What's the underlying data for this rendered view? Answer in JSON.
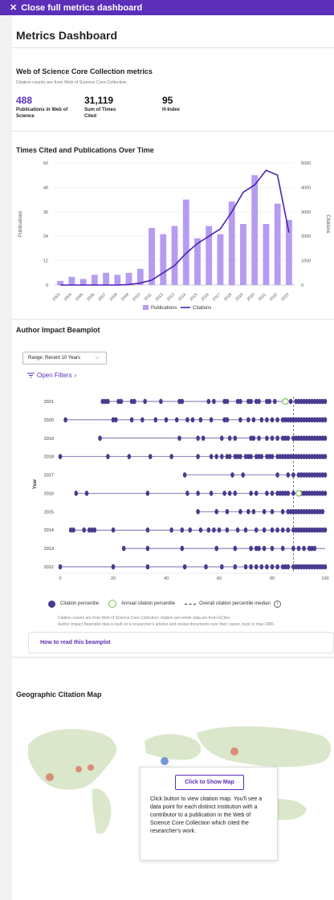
{
  "topbar": {
    "close_label": "Close full metrics dashboard"
  },
  "page_title": "Metrics Dashboard",
  "wos": {
    "title": "Web of Science Core Collection metrics",
    "subtitle": "Citation counts are from Web of Science Core Collection.",
    "metrics": [
      {
        "value": "488",
        "label": "Publications in Web of Science"
      },
      {
        "value": "31,119",
        "label": "Sum of Times Cited"
      },
      {
        "value": "95",
        "label": "H-Index"
      }
    ]
  },
  "chart_data": {
    "type": "bar",
    "title": "Times Cited and Publications Over Time",
    "categories": [
      "2003",
      "2004",
      "2005",
      "2006",
      "2007",
      "2008",
      "2009",
      "2010",
      "2011",
      "2012",
      "2013",
      "2014",
      "2015",
      "2016",
      "2017",
      "2018",
      "2019",
      "2020",
      "2021",
      "2022",
      "2023"
    ],
    "series": [
      {
        "name": "Publications",
        "type": "bar",
        "axis": "left",
        "color": "#b69cf0",
        "values": [
          2,
          4,
          3,
          5,
          6,
          5,
          6,
          8,
          28,
          25,
          29,
          42,
          23,
          29,
          25,
          41,
          30,
          54,
          30,
          40,
          32
        ]
      },
      {
        "name": "Citations",
        "type": "line",
        "axis": "right",
        "color": "#4b22b5",
        "values": [
          0,
          0,
          0,
          0,
          0,
          0,
          20,
          80,
          200,
          500,
          800,
          1300,
          1700,
          2000,
          2300,
          3000,
          3800,
          4100,
          4700,
          4500,
          2150
        ]
      }
    ],
    "ylabel": "Publications",
    "y2label": "Citations",
    "ylim": [
      0,
      60
    ],
    "y2lim": [
      0,
      5000
    ],
    "yticks": [
      "0",
      "12",
      "24",
      "36",
      "48",
      "60"
    ],
    "y2ticks": [
      "0",
      "1000",
      "2000",
      "3000",
      "4000",
      "5000"
    ],
    "legend": "bottom"
  },
  "beamplot": {
    "title": "Author Impact Beamplot",
    "range_label": "Range: Recent 10 Years",
    "filters_label": "Open Filters",
    "ylabel": "Year",
    "years": [
      "2021",
      "2020",
      "2019",
      "2018",
      "2017",
      "2016",
      "2015",
      "2014",
      "2013",
      "2012"
    ],
    "xticks": [
      "0",
      "20",
      "40",
      "60",
      "80",
      "100"
    ],
    "median": 88,
    "rows": [
      {
        "year": "2021",
        "start": 16,
        "annual": 85,
        "points": [
          16,
          17,
          18,
          22,
          23,
          27,
          28,
          32,
          38,
          45,
          46,
          56,
          58,
          62,
          63,
          67,
          68,
          71,
          72,
          74,
          75,
          78,
          79,
          81,
          85,
          87,
          89,
          90,
          91,
          92,
          93,
          94,
          95,
          96,
          97,
          98,
          99,
          100
        ]
      },
      {
        "year": "2020",
        "start": 2,
        "annual": null,
        "points": [
          2,
          20,
          21,
          27,
          31,
          36,
          40,
          44,
          48,
          50,
          53,
          57,
          62,
          63,
          68,
          71,
          73,
          76,
          78,
          80,
          82,
          84,
          85,
          86,
          87,
          88,
          89,
          90,
          91,
          92,
          93,
          94,
          95,
          96,
          97,
          98,
          99,
          100
        ]
      },
      {
        "year": "2019",
        "start": 15,
        "annual": null,
        "points": [
          15,
          45,
          52,
          54,
          61,
          64,
          66,
          72,
          73,
          75,
          78,
          80,
          82,
          84,
          85,
          86,
          88,
          89,
          90,
          91,
          92,
          93,
          94,
          95,
          96,
          97,
          98,
          99,
          100
        ]
      },
      {
        "year": "2018",
        "start": 0,
        "annual": null,
        "points": [
          0,
          18,
          26,
          34,
          42,
          52,
          57,
          59,
          61,
          63,
          64,
          66,
          67,
          68,
          70,
          71,
          72,
          74,
          75,
          76,
          78,
          79,
          80,
          82,
          83,
          84,
          85,
          86,
          87,
          88,
          89,
          90,
          91,
          92,
          93,
          94,
          95,
          96,
          97,
          98,
          99,
          100
        ]
      },
      {
        "year": "2017",
        "start": 47,
        "annual": null,
        "points": [
          47,
          65,
          69,
          82,
          86,
          88,
          90,
          91,
          92,
          93,
          94,
          95,
          96,
          97,
          98,
          99,
          100
        ]
      },
      {
        "year": "2016",
        "start": 6,
        "annual": 90,
        "points": [
          6,
          10,
          33,
          48,
          52,
          57,
          62,
          64,
          66,
          72,
          74,
          78,
          80,
          82,
          83,
          84,
          85,
          86,
          88,
          90,
          91,
          92,
          93,
          94,
          95,
          96,
          97,
          98,
          99,
          100
        ]
      },
      {
        "year": "2015",
        "start": 52,
        "annual": null,
        "points": [
          52,
          59,
          63,
          68,
          71,
          73,
          77,
          80,
          84,
          86,
          87,
          88,
          89,
          90,
          91,
          92,
          93,
          94,
          95,
          96,
          97,
          98,
          99
        ]
      },
      {
        "year": "2014",
        "start": 4,
        "annual": null,
        "points": [
          4,
          5,
          9,
          11,
          12,
          13,
          20,
          33,
          42,
          46,
          49,
          53,
          56,
          58,
          60,
          63,
          67,
          70,
          74,
          77,
          80,
          82,
          84,
          86,
          88,
          89,
          90,
          91,
          92,
          93,
          94,
          95,
          96,
          97,
          98,
          99,
          100
        ]
      },
      {
        "year": "2013",
        "start": 24,
        "annual": null,
        "points": [
          24,
          33,
          46,
          59,
          66,
          72,
          74,
          75,
          77,
          80,
          84,
          88,
          90,
          92,
          94,
          95,
          96
        ]
      },
      {
        "year": "2012",
        "start": 0,
        "annual": null,
        "points": [
          0,
          20,
          33,
          47,
          55,
          61,
          66,
          70,
          72,
          74,
          76,
          78,
          80,
          82,
          84,
          85,
          86,
          88,
          89,
          90,
          91,
          92,
          93,
          94,
          95,
          96,
          97,
          98,
          99,
          100
        ]
      }
    ],
    "legend": {
      "dot": "Citation percentile",
      "ring": "Annual citation percentile",
      "dash": "Overall citation percentile median",
      "info": "i"
    },
    "note1": "Citation counts are from Web of Science Core Collection; citation percentile data are from InCites",
    "note2": "Author Impact Beamplot data is built on a researcher's articles and review documents over their career, back to max 1980."
  },
  "howto": {
    "label": "How to read this beamplot"
  },
  "geo": {
    "title": "Geographic Citation Map",
    "button": "Click to Show Map",
    "description": "Click button to view citation map. You'll see a data point for each distinct institution with a contributor to a publication in the Web of Science Core Collection which cited the researcher's work."
  }
}
